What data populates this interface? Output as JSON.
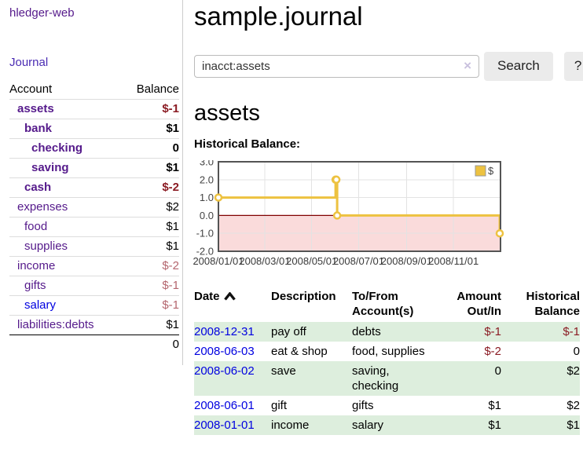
{
  "app": {
    "brand": "hledger-web"
  },
  "colors": {
    "link_visited": "#551a8b",
    "link_new": "#0000e0",
    "negative_strong": "#8b1c24",
    "negative_soft": "#b4666e",
    "row_green": "#ddeedd",
    "chart_gold": "#edc240",
    "zero_line": "#800000",
    "negative_region": "#f6b7b7"
  },
  "sidebar": {
    "journal_link": "Journal",
    "accounts_table": {
      "headers": [
        "Account",
        "Balance"
      ],
      "rows": [
        {
          "name": "assets",
          "indent": 1,
          "bold": true,
          "link_color": "purple",
          "balance": "$-1",
          "balance_style": "neg-strong"
        },
        {
          "name": "bank",
          "indent": 2,
          "bold": true,
          "link_color": "purple",
          "balance": "$1",
          "balance_style": "pos"
        },
        {
          "name": "checking",
          "indent": 3,
          "bold": true,
          "link_color": "purple",
          "balance": "0",
          "balance_style": "pos"
        },
        {
          "name": "saving",
          "indent": 3,
          "bold": true,
          "link_color": "purple",
          "balance": "$1",
          "balance_style": "pos"
        },
        {
          "name": "cash",
          "indent": 2,
          "bold": true,
          "link_color": "purple",
          "balance": "$-2",
          "balance_style": "neg-strong"
        },
        {
          "name": "expenses",
          "indent": 1,
          "bold": false,
          "link_color": "purple",
          "balance": "$2",
          "balance_style": "pos"
        },
        {
          "name": "food",
          "indent": 2,
          "bold": false,
          "link_color": "purple",
          "balance": "$1",
          "balance_style": "pos"
        },
        {
          "name": "supplies",
          "indent": 2,
          "bold": false,
          "link_color": "purple",
          "balance": "$1",
          "balance_style": "pos"
        },
        {
          "name": "income",
          "indent": 1,
          "bold": false,
          "link_color": "purple",
          "balance": "$-2",
          "balance_style": "neg-soft"
        },
        {
          "name": "gifts",
          "indent": 2,
          "bold": false,
          "link_color": "purple",
          "balance": "$-1",
          "balance_style": "neg-soft"
        },
        {
          "name": "salary",
          "indent": 2,
          "bold": false,
          "link_color": "blue",
          "balance": "$-1",
          "balance_style": "neg-soft"
        },
        {
          "name": "liabilities:debts",
          "indent": 1,
          "bold": false,
          "link_color": "purple",
          "balance": "$1",
          "balance_style": "pos"
        }
      ],
      "total": "0"
    }
  },
  "main": {
    "title": "sample.journal",
    "search": {
      "value": "inacct:assets",
      "clear_icon": "×",
      "button": "Search",
      "help_button": "?"
    },
    "account_heading": "assets",
    "chart_label": "Historical Balance:"
  },
  "chart_data": {
    "type": "line",
    "title": "Historical Balance",
    "step": true,
    "series": [
      {
        "name": "$",
        "color": "#edc240",
        "points": [
          {
            "date": "2008-01-01",
            "value": 1
          },
          {
            "date": "2008-06-01",
            "value": 2
          },
          {
            "date": "2008-06-02",
            "value": 2
          },
          {
            "date": "2008-06-03",
            "value": 0
          },
          {
            "date": "2008-12-31",
            "value": -1
          }
        ]
      }
    ],
    "x_ticks": [
      "2008/01/01",
      "2008/03/01",
      "2008/05/01",
      "2008/07/01",
      "2008/09/01",
      "2008/11/01"
    ],
    "y_ticks": [
      3.0,
      2.0,
      1.0,
      0.0,
      -1.0,
      -2.0
    ],
    "ylim": [
      -2,
      3
    ],
    "xlim": [
      "2008-01-01",
      "2009-01-01"
    ],
    "grid": true,
    "legend": {
      "label": "$",
      "position": "top-right"
    },
    "negative_region_color": "#f6b7b7",
    "zero_line_color": "#800000"
  },
  "register_table": {
    "columns": [
      {
        "label": "Date",
        "align": "left",
        "sort": "asc"
      },
      {
        "label": "Description",
        "align": "left"
      },
      {
        "label": "To/From Account(s)",
        "align": "left"
      },
      {
        "label": "Amount Out/In",
        "align": "right"
      },
      {
        "label": "Historical Balance",
        "align": "right"
      }
    ],
    "rows": [
      {
        "date": "2008-12-31",
        "description": "pay off",
        "accounts": "debts",
        "amount": "$-1",
        "amount_neg": true,
        "balance": "$-1",
        "balance_neg": true
      },
      {
        "date": "2008-06-03",
        "description": "eat & shop",
        "accounts": "food, supplies",
        "amount": "$-2",
        "amount_neg": true,
        "balance": "0",
        "balance_neg": false
      },
      {
        "date": "2008-06-02",
        "description": "save",
        "accounts": "saving, checking",
        "amount": "0",
        "amount_neg": false,
        "balance": "$2",
        "balance_neg": false
      },
      {
        "date": "2008-06-01",
        "description": "gift",
        "accounts": "gifts",
        "amount": "$1",
        "amount_neg": false,
        "balance": "$2",
        "balance_neg": false
      },
      {
        "date": "2008-01-01",
        "description": "income",
        "accounts": "salary",
        "amount": "$1",
        "amount_neg": false,
        "balance": "$1",
        "balance_neg": false
      }
    ]
  }
}
